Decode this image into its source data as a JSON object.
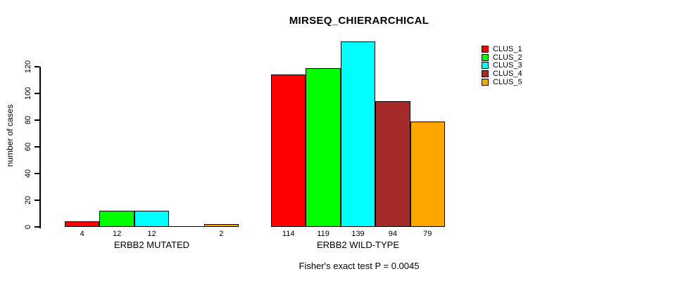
{
  "page": {
    "background": "#ffffff"
  },
  "chart_data": {
    "type": "bar",
    "title": "MIRSEQ_CHIERARCHICAL",
    "ylabel": "number of cases",
    "xlabel": "",
    "ylim": [
      0,
      120
    ],
    "yticks": [
      0,
      20,
      40,
      60,
      80,
      100,
      120
    ],
    "grid": false,
    "legend_position": "top-right",
    "groups": [
      {
        "label": "ERBB2 MUTATED"
      },
      {
        "label": "ERBB2 WILD-TYPE"
      }
    ],
    "series": [
      {
        "name": "CLUS_1",
        "color": "#ff0000",
        "values": [
          4,
          114
        ]
      },
      {
        "name": "CLUS_2",
        "color": "#00ff00",
        "values": [
          12,
          119
        ]
      },
      {
        "name": "CLUS_3",
        "color": "#00ffff",
        "values": [
          12,
          139
        ]
      },
      {
        "name": "CLUS_4",
        "color": "#a52a2a",
        "values": [
          0,
          94
        ]
      },
      {
        "name": "CLUS_5",
        "color": "#ffa500",
        "values": [
          2,
          79
        ]
      }
    ],
    "value_labels_shown": [
      [
        "4",
        "12",
        "12",
        "",
        "2"
      ],
      [
        "114",
        "119",
        "139",
        "94",
        "79"
      ]
    ],
    "annotation": "Fisher's exact test P = 0.0045"
  }
}
